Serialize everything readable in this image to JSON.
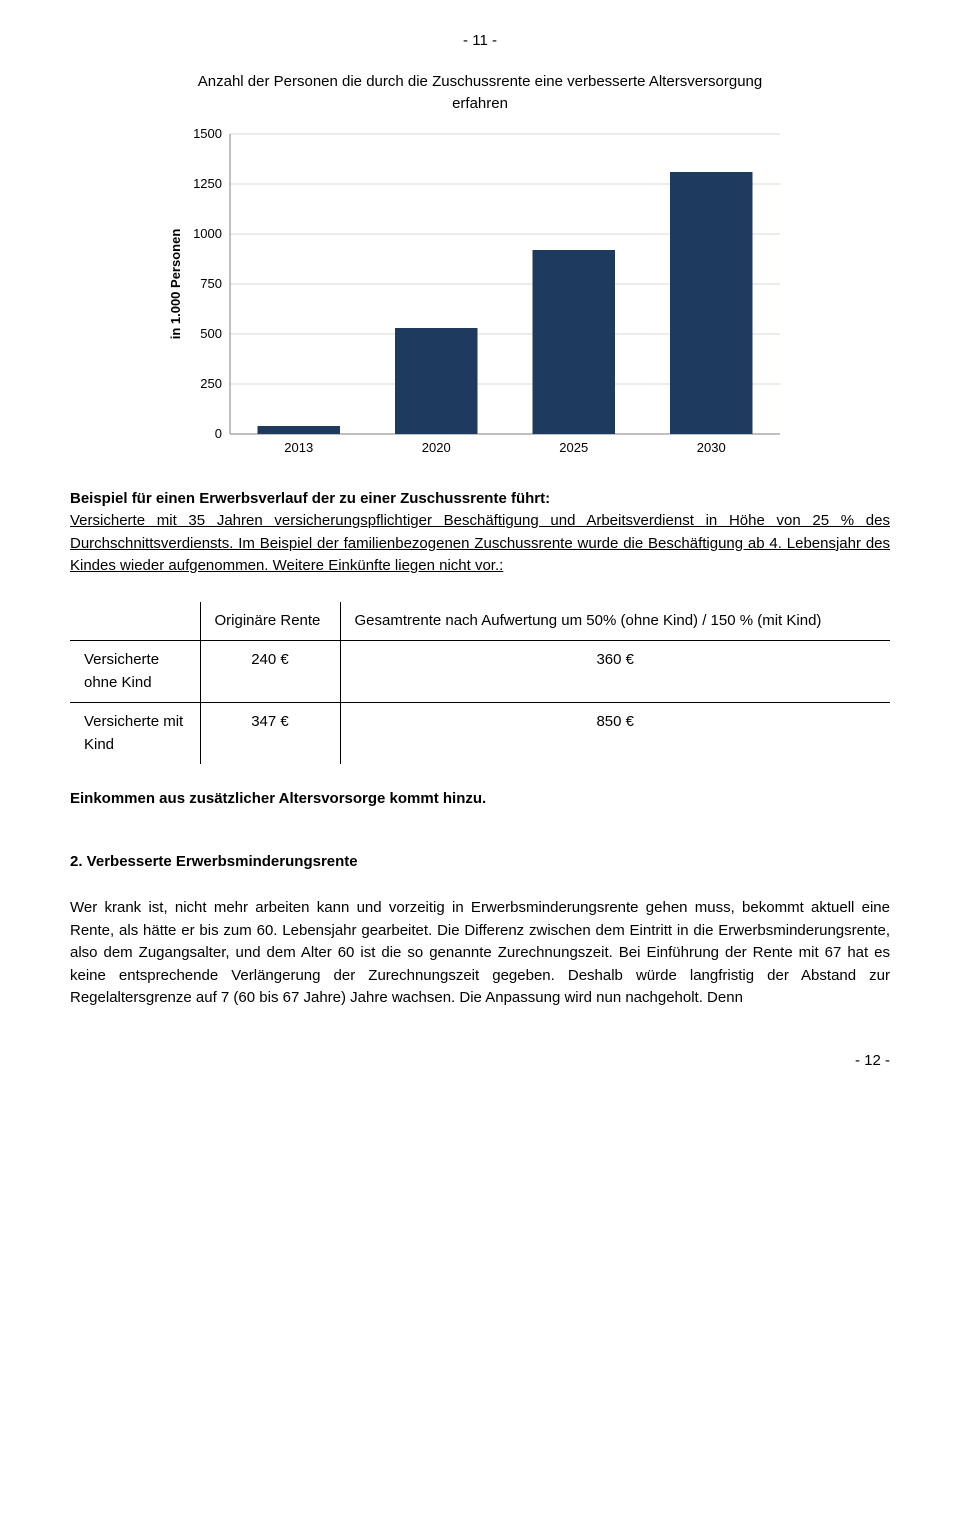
{
  "page_marker_top": "- 11 -",
  "page_marker_bottom": "- 12 -",
  "chart": {
    "type": "bar",
    "title": "Anzahl der Personen die durch die Zuschussrente eine verbesserte Altersversorgung erfahren",
    "y_axis_label": "in 1.000 Personen",
    "categories": [
      "2013",
      "2020",
      "2025",
      "2030"
    ],
    "values": [
      40,
      530,
      920,
      1310
    ],
    "bar_colors": [
      "#1f3a5f",
      "#1f3a5f",
      "#1f3a5f",
      "#1f3a5f"
    ],
    "ylim": [
      0,
      1500
    ],
    "ytick_step": 250,
    "background_color": "#ffffff",
    "grid_color": "#d9d9d9",
    "axis_color": "#808080",
    "bar_width_ratio": 0.6,
    "label_fontsize": 13
  },
  "example_intro_bold": "Beispiel für einen Erwerbsverlauf der zu einer Zuschussrente führt:",
  "example_intro_rest": "Versicherte mit 35 Jahren versicherungspflichtiger Beschäftigung und Arbeitsverdienst in Höhe von 25 % des Durchschnittsverdiensts. Im Beispiel der familienbezogenen Zuschussrente wurde die Beschäftigung ab 4. Lebensjahr des Kindes wieder aufgenommen. Weitere Einkünfte liegen nicht vor.:",
  "table": {
    "header_col1": "Originäre Rente",
    "header_col2": "Gesamtrente nach Aufwertung um 50% (ohne Kind) / 150 % (mit Kind)",
    "rows": [
      {
        "label": "Versicherte ohne Kind",
        "col1": "240 €",
        "col2": "360 €"
      },
      {
        "label": "Versicherte mit Kind",
        "col1": "347 €",
        "col2": "850 €"
      }
    ]
  },
  "income_note": "Einkommen aus zusätzlicher Altersvorsorge kommt hinzu.",
  "section2_heading": "2. Verbesserte Erwerbsminderungsrente",
  "section2_body": "Wer krank ist, nicht mehr arbeiten kann und vorzeitig in Erwerbsminderungsrente gehen muss, bekommt aktuell eine Rente, als hätte er bis zum 60. Lebensjahr gearbeitet. Die Differenz zwischen dem Eintritt in die Erwerbsminderungsrente, also dem Zugangsalter, und dem Alter 60 ist die so genannte Zurechnungszeit. Bei Einführung der Rente mit 67 hat es keine entsprechende Verlängerung der Zurechnungszeit gegeben. Deshalb würde langfristig der Abstand zur Regelaltersgrenze auf 7 (60 bis 67 Jahre) Jahre wachsen. Die Anpassung wird nun nachgeholt. Denn"
}
